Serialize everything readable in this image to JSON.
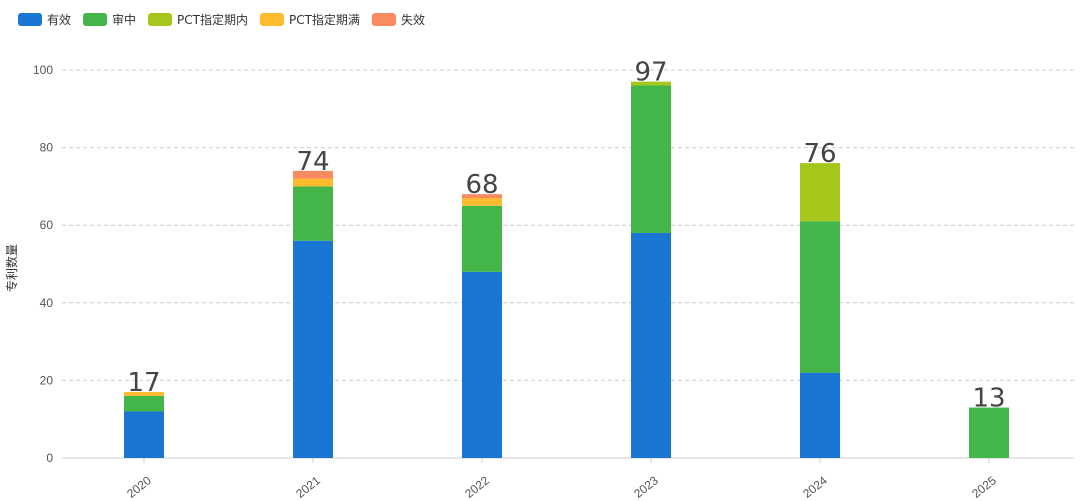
{
  "chart_data": {
    "type": "bar",
    "stacked": true,
    "categories": [
      "2020",
      "2021",
      "2022",
      "2023",
      "2024",
      "2025"
    ],
    "series": [
      {
        "name": "有效",
        "color": "#1976d2",
        "values": [
          12,
          56,
          48,
          58,
          22,
          0
        ]
      },
      {
        "name": "审中",
        "color": "#43b549",
        "values": [
          4,
          14,
          17,
          38,
          39,
          13
        ]
      },
      {
        "name": "PCT指定期内",
        "color": "#a5c61a",
        "values": [
          0,
          0,
          0,
          1,
          15,
          0
        ]
      },
      {
        "name": "PCT指定期满",
        "color": "#fdbb2d",
        "values": [
          1,
          2,
          2,
          0,
          0,
          0
        ]
      },
      {
        "name": "失效",
        "color": "#fa8a5f",
        "values": [
          0,
          2,
          1,
          0,
          0,
          0
        ]
      }
    ],
    "totals": [
      17,
      74,
      68,
      97,
      76,
      13
    ],
    "ylabel": "专利数量",
    "xlabel": "",
    "ylim": [
      0,
      100
    ],
    "yticks": [
      0,
      20,
      40,
      60,
      80,
      100
    ],
    "grid": true,
    "legend_position": "top-left"
  }
}
